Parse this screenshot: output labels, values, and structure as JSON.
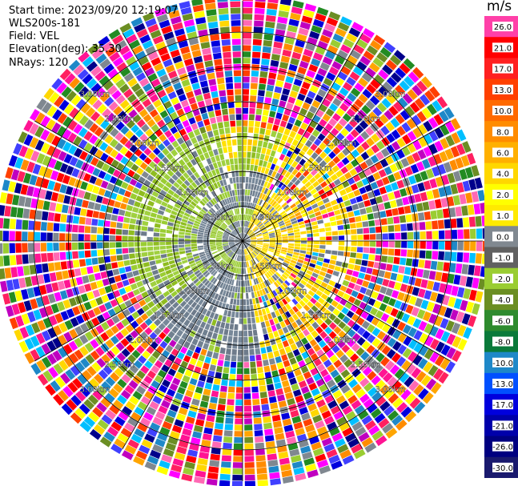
{
  "header": {
    "start_time": "Start time: 2023/09/20 12:19:07",
    "site": "WLS200s-181",
    "field": "Field: VEL",
    "elevation": "Elevation(deg): 35.30",
    "nrays": "NRays: 120"
  },
  "colorbar": {
    "unit": "m/s",
    "labels": [
      "26.0",
      "21.0",
      "17.0",
      "13.0",
      "10.0",
      "8.0",
      "6.0",
      "4.0",
      "2.0",
      "1.0",
      "0.0",
      "-1.0",
      "-2.0",
      "-4.0",
      "-6.0",
      "-8.0",
      "-10.0",
      "-13.0",
      "-17.0",
      "-21.0",
      "-26.0",
      "-30.0"
    ],
    "colors": [
      "#ff40a8",
      "#ff0000",
      "#ff2020",
      "#ff4000",
      "#ff6a00",
      "#ff8c00",
      "#ffb000",
      "#ffd700",
      "#ffff00",
      "#ffea00",
      "#808890",
      "#606060",
      "#9acd32",
      "#6b8e23",
      "#2e8b2e",
      "#0a7a3a",
      "#1e88c8",
      "#0050ff",
      "#0000dd",
      "#0000aa",
      "#000080",
      "#1a1a6e"
    ]
  },
  "chart_data": {
    "type": "heatmap",
    "field": "VEL",
    "unit": "m/s",
    "nrays": 120,
    "elevation_deg": 35.3,
    "range_rings_km": [
      0.5,
      1.0,
      1.5,
      2.0,
      2.5,
      3.0
    ],
    "ring_label_texts": {
      "r0_5": "0.50km",
      "r1_0": "1.00km",
      "r1_5": "1.50km",
      "r2_0": "2.00km",
      "r2_5": "2.50km",
      "r3_0": "3.00km"
    },
    "max_range_km": 3.45,
    "colorbar_range": [
      -30.0,
      26.0
    ],
    "structure_notes": "near-field (< ~1.6 km) coherent: grey ~0 m/s toward south/west, yellow 1-4 m/s in east sector, green -1 to -4 m/s band in west/northwest; far field noisy full-scale"
  }
}
